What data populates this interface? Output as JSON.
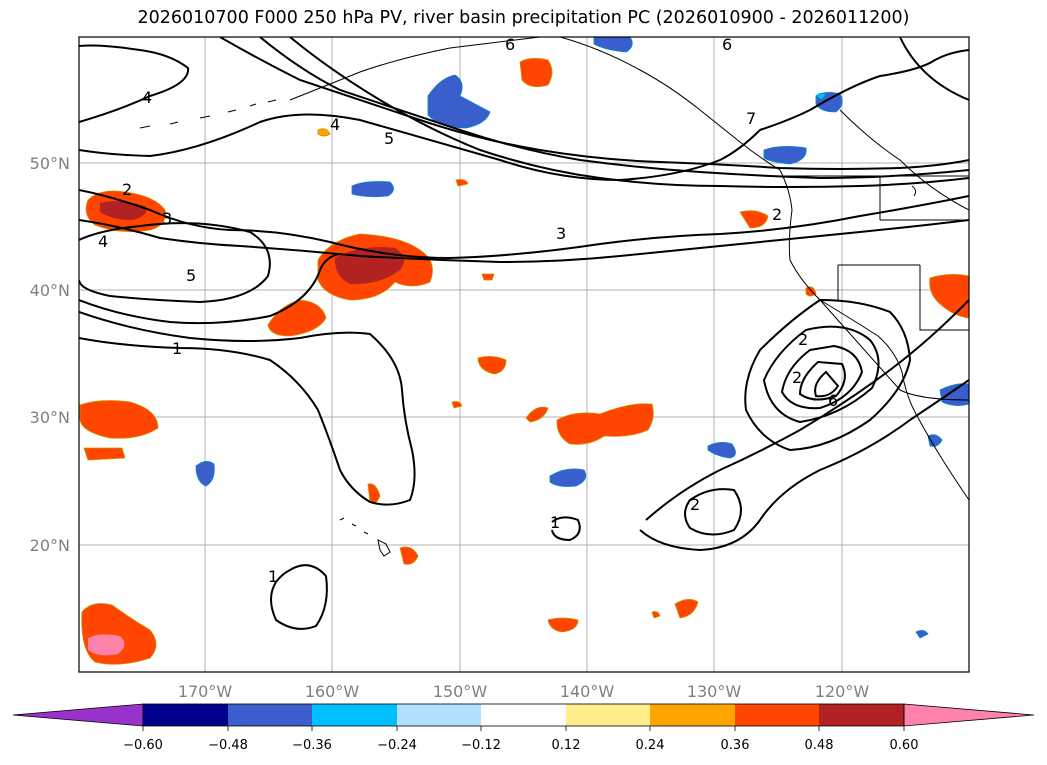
{
  "title": "2026010700 F000 250 hPa PV, river basin precipitation PC (2026010900 - 2026011200)",
  "map": {
    "lat_labels": [
      "50°N",
      "40°N",
      "30°N",
      "20°N"
    ],
    "lon_labels": [
      "170°W",
      "160°W",
      "150°W",
      "140°W",
      "130°W",
      "120°W"
    ],
    "pv_contour_labels": [
      "6",
      "6",
      "4",
      "4",
      "5",
      "7",
      "2",
      "3",
      "4",
      "3",
      "2",
      "5",
      "1",
      "2",
      "2",
      "6",
      "2",
      "1",
      "1"
    ]
  },
  "colorbar": {
    "tick_labels": [
      "−0.60",
      "−0.48",
      "−0.36",
      "−0.24",
      "−0.12",
      "0.12",
      "0.24",
      "0.36",
      "0.48",
      "0.60"
    ],
    "colors": [
      "#9932CC",
      "#00008B",
      "#3A5FCD",
      "#00BFFF",
      "#B0E2FF",
      "#FFFFFF",
      "#FFEC8B",
      "#FFA500",
      "#FF4500",
      "#B22222",
      "#FF82AB"
    ]
  }
}
